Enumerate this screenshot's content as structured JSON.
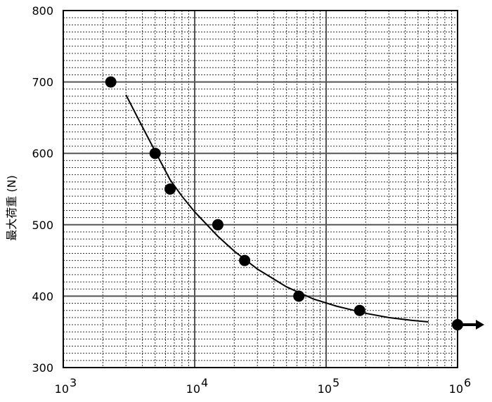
{
  "chart_data": {
    "type": "scatter",
    "title": "",
    "xlabel": "",
    "ylabel": "最大荷重 (N)",
    "x_scale": "log",
    "xlim": [
      1000,
      1000000
    ],
    "ylim": [
      300,
      800
    ],
    "x_ticks": [
      {
        "value": 1000,
        "base": "10",
        "exp": "3"
      },
      {
        "value": 10000,
        "base": "10",
        "exp": "4"
      },
      {
        "value": 100000,
        "base": "10",
        "exp": "5"
      },
      {
        "value": 1000000,
        "base": "10",
        "exp": "6"
      }
    ],
    "y_ticks": [
      {
        "value": 300,
        "label": "300"
      },
      {
        "value": 400,
        "label": "400"
      },
      {
        "value": 500,
        "label": "500"
      },
      {
        "value": 600,
        "label": "600"
      },
      {
        "value": 700,
        "label": "700"
      },
      {
        "value": 800,
        "label": "800"
      }
    ],
    "grid": true,
    "points": [
      {
        "x": 2300,
        "y": 700
      },
      {
        "x": 5000,
        "y": 600
      },
      {
        "x": 6500,
        "y": 550
      },
      {
        "x": 15000,
        "y": 500
      },
      {
        "x": 24000,
        "y": 450
      },
      {
        "x": 62000,
        "y": 400
      },
      {
        "x": 180000,
        "y": 380
      },
      {
        "x": 1000000,
        "y": 360,
        "runout": true
      }
    ],
    "fit_curve": {
      "x": [
        3000,
        4000,
        5000,
        6500,
        8000,
        10000,
        15000,
        20000,
        30000,
        50000,
        80000,
        120000,
        200000,
        300000,
        450000,
        600000
      ],
      "y": [
        682,
        637,
        603,
        563,
        540,
        518,
        484,
        463,
        438,
        413,
        396,
        386,
        376,
        370,
        366,
        364
      ]
    },
    "colors": {
      "marker": "#000000",
      "curve": "#000000",
      "major_grid": "#555555",
      "minor_grid": "#333333"
    }
  }
}
